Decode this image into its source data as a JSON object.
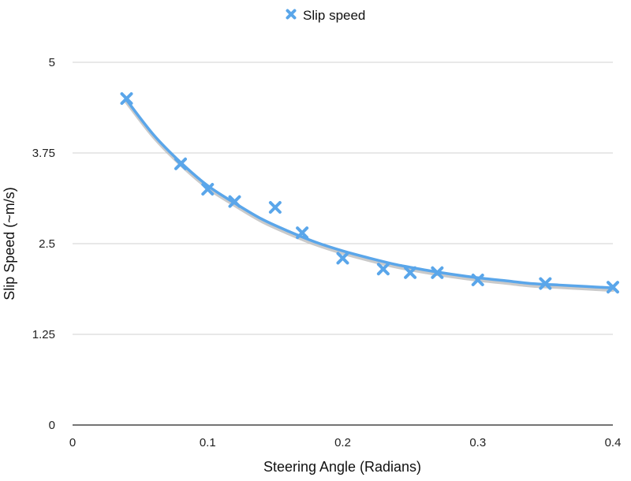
{
  "chart_data": {
    "type": "scatter",
    "title": "",
    "xlabel": "Steering Angle (Radians)",
    "ylabel": "Slip Speed (~m/s)",
    "xlim": [
      0,
      0.4
    ],
    "ylim": [
      0,
      5
    ],
    "x_ticks": [
      0,
      0.1,
      0.2,
      0.3,
      0.4
    ],
    "x_tick_labels": [
      "0",
      "0.1",
      "0.2",
      "0.3",
      "0.4"
    ],
    "y_ticks": [
      0,
      1.25,
      2.5,
      3.75,
      5
    ],
    "y_tick_labels": [
      "0",
      "1.25",
      "2.5",
      "3.75",
      "5"
    ],
    "grid": "horizontal",
    "legend": {
      "placement": "top-center",
      "entries": [
        "Slip speed"
      ]
    },
    "series": [
      {
        "name": "Slip speed",
        "marker": "x",
        "color": "#5aa6ea",
        "x": [
          0.04,
          0.08,
          0.1,
          0.12,
          0.15,
          0.17,
          0.2,
          0.23,
          0.25,
          0.27,
          0.3,
          0.35,
          0.4
        ],
        "y": [
          4.5,
          3.6,
          3.25,
          3.08,
          3.0,
          2.65,
          2.3,
          2.15,
          2.1,
          2.1,
          2.0,
          1.95,
          1.9
        ]
      }
    ],
    "trendline": {
      "color": "#5aa6ea",
      "x": [
        0.04,
        0.06,
        0.08,
        0.1,
        0.12,
        0.14,
        0.16,
        0.18,
        0.2,
        0.22,
        0.24,
        0.26,
        0.28,
        0.3,
        0.32,
        0.34,
        0.36,
        0.38,
        0.4
      ],
      "y": [
        4.48,
        4.0,
        3.62,
        3.3,
        3.06,
        2.84,
        2.67,
        2.52,
        2.4,
        2.3,
        2.21,
        2.14,
        2.08,
        2.03,
        1.99,
        1.95,
        1.93,
        1.91,
        1.89
      ]
    }
  }
}
